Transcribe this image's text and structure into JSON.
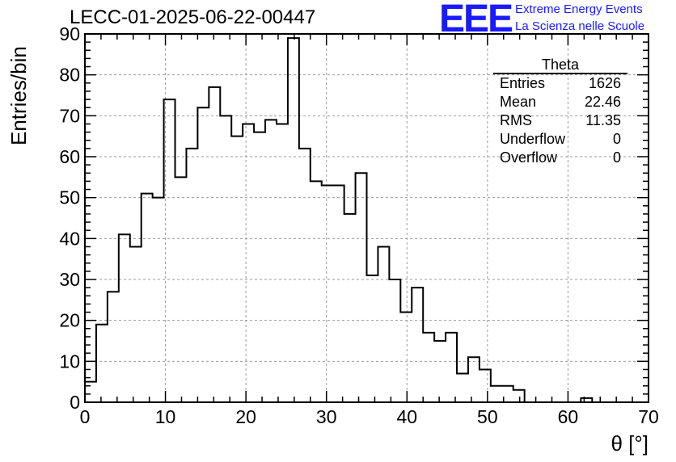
{
  "title": "LECC-01-2025-06-22-00447",
  "logo": {
    "mark": "EEE",
    "line1": "Extreme Energy Events",
    "line2": "La Scienza nelle Scuole",
    "color": "#1a1aff"
  },
  "stats": {
    "name": "Theta",
    "rows": [
      {
        "label": "Entries",
        "value": "1626"
      },
      {
        "label": "Mean",
        "value": "22.46"
      },
      {
        "label": "RMS",
        "value": "11.35"
      },
      {
        "label": "Underflow",
        "value": "0"
      },
      {
        "label": "Overflow",
        "value": "0"
      }
    ]
  },
  "chart_data": {
    "type": "bar",
    "style": "step histogram",
    "title": "LECC-01-2025-06-22-00447",
    "xlabel": "θ [°]",
    "ylabel": "Entries/bin",
    "xlim": [
      0,
      70
    ],
    "ylim": [
      0,
      90
    ],
    "x_ticks": [
      0,
      10,
      20,
      30,
      40,
      50,
      60,
      70
    ],
    "y_ticks": [
      0,
      10,
      20,
      30,
      40,
      50,
      60,
      70,
      80,
      90
    ],
    "grid": true,
    "bin_edges": [
      0,
      1.4,
      2.8,
      4.2,
      5.6,
      7,
      8.4,
      9.8,
      11.2,
      12.6,
      14,
      15.4,
      16.8,
      18.2,
      19.6,
      21,
      22.4,
      23.8,
      25.2,
      26.6,
      28,
      29.4,
      30.8,
      32.2,
      33.6,
      35,
      36.4,
      37.8,
      39.2,
      40.6,
      42,
      43.4,
      44.8,
      46.2,
      47.6,
      49,
      50.4,
      51.8,
      53.2,
      54.6,
      56,
      57.4,
      58.8,
      60.2,
      61.6,
      63,
      64.4,
      65.8,
      67.2,
      68.6,
      70
    ],
    "values": [
      5,
      19,
      27,
      41,
      38,
      51,
      50,
      74,
      55,
      62,
      72,
      77,
      70,
      65,
      68,
      66,
      69,
      68,
      89,
      62,
      54,
      53,
      53,
      46,
      56,
      31,
      38,
      30,
      22,
      28,
      17,
      15,
      17,
      7,
      11,
      8,
      4,
      4,
      3,
      0,
      0,
      0,
      0,
      0,
      1,
      0,
      0,
      0,
      0,
      0
    ]
  }
}
